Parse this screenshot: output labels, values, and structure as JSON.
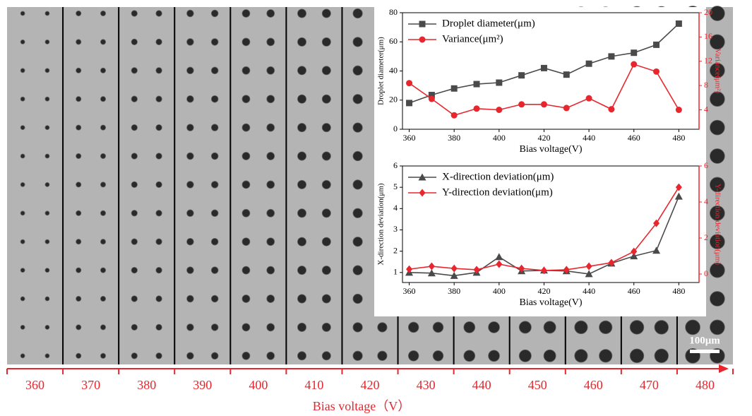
{
  "image_strip": {
    "categories": [
      "360",
      "370",
      "380",
      "390",
      "400",
      "410",
      "420",
      "430",
      "440",
      "450",
      "460",
      "470",
      "480"
    ],
    "x_label": "Bias voltage（V）",
    "scale_bar_label": "100μm"
  },
  "chart_data": [
    {
      "type": "line",
      "x": [
        360,
        370,
        380,
        390,
        400,
        410,
        420,
        430,
        440,
        450,
        460,
        470,
        480
      ],
      "x_label": "Bias voltage(V)",
      "y_label": "Droplet diameter(μm)",
      "y2_label": "Variance(μm²)",
      "xlim": [
        357,
        489
      ],
      "xticks": [
        360,
        380,
        400,
        420,
        440,
        460,
        480
      ],
      "ylim": [
        0,
        80
      ],
      "yticks": [
        0,
        20,
        40,
        60,
        80
      ],
      "y2lim": [
        0.8,
        20
      ],
      "y2ticks": [
        4,
        8,
        12,
        16,
        20
      ],
      "legend": "upper left",
      "series": [
        {
          "name": "Droplet diameter(μm)",
          "color": "#4a4a4a",
          "marker": "square",
          "values": [
            18,
            23.5,
            28,
            31,
            32,
            37,
            42,
            37.5,
            45,
            50,
            52.5,
            58,
            72.5
          ]
        },
        {
          "name": "Variance(μm²)",
          "color": "#e8262d",
          "marker": "circle",
          "axis": "y2",
          "values": [
            8.4,
            5.8,
            3.1,
            4.2,
            4.0,
            4.9,
            4.9,
            4.3,
            5.9,
            4.1,
            11.5,
            10.3,
            4.0
          ]
        }
      ]
    },
    {
      "type": "line",
      "x": [
        360,
        370,
        380,
        390,
        400,
        410,
        420,
        430,
        440,
        450,
        460,
        470,
        480
      ],
      "x_label": "Bias voltage(V)",
      "y_label": "X-direction deviation(μm)",
      "y2_label": "Y-direction deviation(μm)",
      "xlim": [
        357,
        489
      ],
      "xticks": [
        360,
        380,
        400,
        420,
        440,
        460,
        480
      ],
      "ylim": [
        0.53,
        6
      ],
      "yticks": [
        1,
        2,
        3,
        4,
        5,
        6
      ],
      "y2lim": [
        -0.47,
        6
      ],
      "y2ticks": [
        0,
        2,
        4,
        6
      ],
      "legend": "upper left",
      "series": [
        {
          "name": "X-direction deviation(μm)",
          "color": "#4a4a4a",
          "marker": "triangle",
          "values": [
            1.0,
            0.97,
            0.85,
            1.0,
            1.73,
            1.07,
            1.1,
            1.07,
            0.93,
            1.43,
            1.77,
            2.03,
            4.57
          ]
        },
        {
          "name": "Y-direction deviation(μm)",
          "color": "#e8262d",
          "marker": "diamond",
          "axis": "y2",
          "values": [
            0.27,
            0.43,
            0.31,
            0.24,
            0.55,
            0.31,
            0.2,
            0.24,
            0.43,
            0.63,
            1.25,
            2.82,
            4.82
          ]
        }
      ]
    }
  ]
}
